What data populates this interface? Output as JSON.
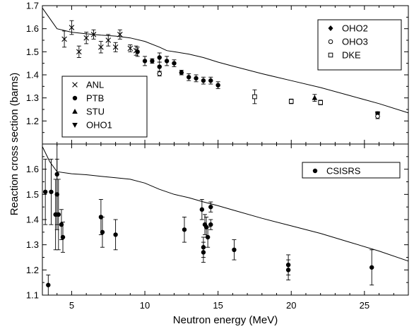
{
  "chart_data": {
    "type": "scatter",
    "xlabel": "Neutron energy (MeV)",
    "ylabel": "Reaction cross section (barns)",
    "xlim": [
      3,
      28
    ],
    "x_ticks": [
      5,
      10,
      15,
      20,
      25
    ],
    "panels": [
      {
        "name": "top",
        "ylim": [
          1.1,
          1.7
        ],
        "y_ticks": [
          1.2,
          1.3,
          1.4,
          1.5,
          1.6,
          1.7
        ],
        "legends": [
          {
            "position": "top-right",
            "entries": [
              "OHO2",
              "OHO3",
              "DKE"
            ]
          },
          {
            "position": "bottom-left",
            "entries": [
              "ANL",
              "PTB",
              "STU",
              "OHO1"
            ]
          }
        ],
        "series": [
          {
            "name": "ANL",
            "marker": "x",
            "points": [
              [
                4.5,
                1.555,
                0.035
              ],
              [
                5.0,
                1.605,
                0.03
              ],
              [
                5.5,
                1.5,
                0.025
              ],
              [
                6.0,
                1.56,
                0.025
              ],
              [
                6.5,
                1.575,
                0.02
              ],
              [
                7.0,
                1.52,
                0.025
              ],
              [
                7.5,
                1.55,
                0.025
              ],
              [
                8.0,
                1.52,
                0.02
              ],
              [
                8.3,
                1.575,
                0.02
              ],
              [
                9.0,
                1.515,
                0.015
              ],
              [
                9.4,
                1.505,
                0.02
              ]
            ]
          },
          {
            "name": "PTB",
            "marker": "circle-filled",
            "points": [
              [
                9.5,
                1.5,
                0.02
              ],
              [
                10.0,
                1.46,
                0.02
              ],
              [
                10.5,
                1.46,
                0.01
              ],
              [
                11.0,
                1.435,
                0.02
              ],
              [
                11.0,
                1.475,
                0.02
              ],
              [
                11.5,
                1.46,
                0.02
              ],
              [
                12.0,
                1.45,
                0.015
              ],
              [
                12.5,
                1.41,
                0.01
              ],
              [
                13.0,
                1.39,
                0.015
              ],
              [
                13.5,
                1.385,
                0.015
              ],
              [
                14.0,
                1.375,
                0.015
              ],
              [
                14.5,
                1.375,
                0.015
              ],
              [
                15.0,
                1.355,
                0.015
              ]
            ]
          },
          {
            "name": "STU",
            "marker": "triangle-up",
            "points": [
              [
                21.6,
                1.3,
                0.015
              ]
            ]
          },
          {
            "name": "OHO1",
            "marker": "triangle-down",
            "points": [
              [
                25.9,
                1.23,
                0.01
              ]
            ]
          },
          {
            "name": "OHO2",
            "marker": "diamond",
            "points": [
              [
                25.9,
                1.23,
                0.01
              ]
            ]
          },
          {
            "name": "OHO3",
            "marker": "circle-open",
            "points": [
              [
                11.0,
                1.405,
                0.01
              ],
              [
                25.9,
                1.22,
                0.01
              ]
            ]
          },
          {
            "name": "DKE",
            "marker": "square-open",
            "points": [
              [
                17.5,
                1.305,
                0.03
              ],
              [
                20.0,
                1.285,
                0.01
              ],
              [
                22.0,
                1.28,
                0.01
              ]
            ]
          }
        ],
        "curve": [
          [
            3.0,
            1.69
          ],
          [
            4.0,
            1.6
          ],
          [
            5.0,
            1.585
          ],
          [
            6.0,
            1.578
          ],
          [
            7.0,
            1.572
          ],
          [
            8.0,
            1.568
          ],
          [
            9.0,
            1.56
          ],
          [
            10.0,
            1.545
          ],
          [
            11.0,
            1.52
          ],
          [
            11.5,
            1.505
          ],
          [
            12.0,
            1.5
          ],
          [
            13.0,
            1.49
          ],
          [
            14.0,
            1.475
          ],
          [
            15.0,
            1.455
          ],
          [
            16.0,
            1.438
          ],
          [
            18.0,
            1.405
          ],
          [
            20.0,
            1.375
          ],
          [
            22.0,
            1.345
          ],
          [
            24.0,
            1.31
          ],
          [
            26.0,
            1.275
          ],
          [
            28.0,
            1.235
          ]
        ]
      },
      {
        "name": "bottom",
        "ylim": [
          1.1,
          1.7
        ],
        "y_ticks": [
          1.1,
          1.2,
          1.3,
          1.4,
          1.5,
          1.6
        ],
        "legends": [
          {
            "position": "top-right",
            "entries": [
              "CSISRS"
            ]
          }
        ],
        "series": [
          {
            "name": "CSISRS",
            "marker": "circle-filled",
            "points": [
              [
                3.2,
                1.51,
                0.13
              ],
              [
                3.4,
                1.14,
                0.04
              ],
              [
                3.6,
                1.51,
                0.13
              ],
              [
                3.9,
                1.42,
                0.14
              ],
              [
                4.0,
                1.58,
                0.2
              ],
              [
                4.0,
                1.5,
                0.14
              ],
              [
                4.1,
                1.42,
                0.14
              ],
              [
                4.3,
                1.38,
                0.06
              ],
              [
                4.4,
                1.33,
                0.06
              ],
              [
                7.0,
                1.41,
                0.07
              ],
              [
                7.1,
                1.35,
                0.06
              ],
              [
                8.0,
                1.34,
                0.06
              ],
              [
                12.7,
                1.36,
                0.05
              ],
              [
                13.9,
                1.44,
                0.04
              ],
              [
                14.0,
                1.29,
                0.04
              ],
              [
                14.0,
                1.27,
                0.04
              ],
              [
                14.1,
                1.38,
                0.04
              ],
              [
                14.2,
                1.37,
                0.04
              ],
              [
                14.3,
                1.33,
                0.04
              ],
              [
                14.5,
                1.38,
                0.02
              ],
              [
                14.5,
                1.45,
                0.02
              ],
              [
                16.1,
                1.28,
                0.04
              ],
              [
                19.8,
                1.22,
                0.04
              ],
              [
                19.8,
                1.2,
                0.04
              ],
              [
                25.5,
                1.21,
                0.07
              ]
            ]
          }
        ],
        "curve": [
          [
            3.0,
            1.69
          ],
          [
            3.5,
            1.63
          ],
          [
            4.0,
            1.59
          ],
          [
            5.0,
            1.582
          ],
          [
            6.0,
            1.578
          ],
          [
            7.0,
            1.572
          ],
          [
            8.0,
            1.566
          ],
          [
            9.0,
            1.56
          ],
          [
            10.0,
            1.545
          ],
          [
            11.0,
            1.52
          ],
          [
            12.0,
            1.5
          ],
          [
            13.0,
            1.487
          ],
          [
            14.0,
            1.47
          ],
          [
            15.0,
            1.455
          ],
          [
            16.0,
            1.438
          ],
          [
            18.0,
            1.405
          ],
          [
            20.0,
            1.375
          ],
          [
            22.0,
            1.345
          ],
          [
            24.0,
            1.31
          ],
          [
            26.0,
            1.275
          ],
          [
            28.0,
            1.235
          ]
        ]
      }
    ]
  }
}
